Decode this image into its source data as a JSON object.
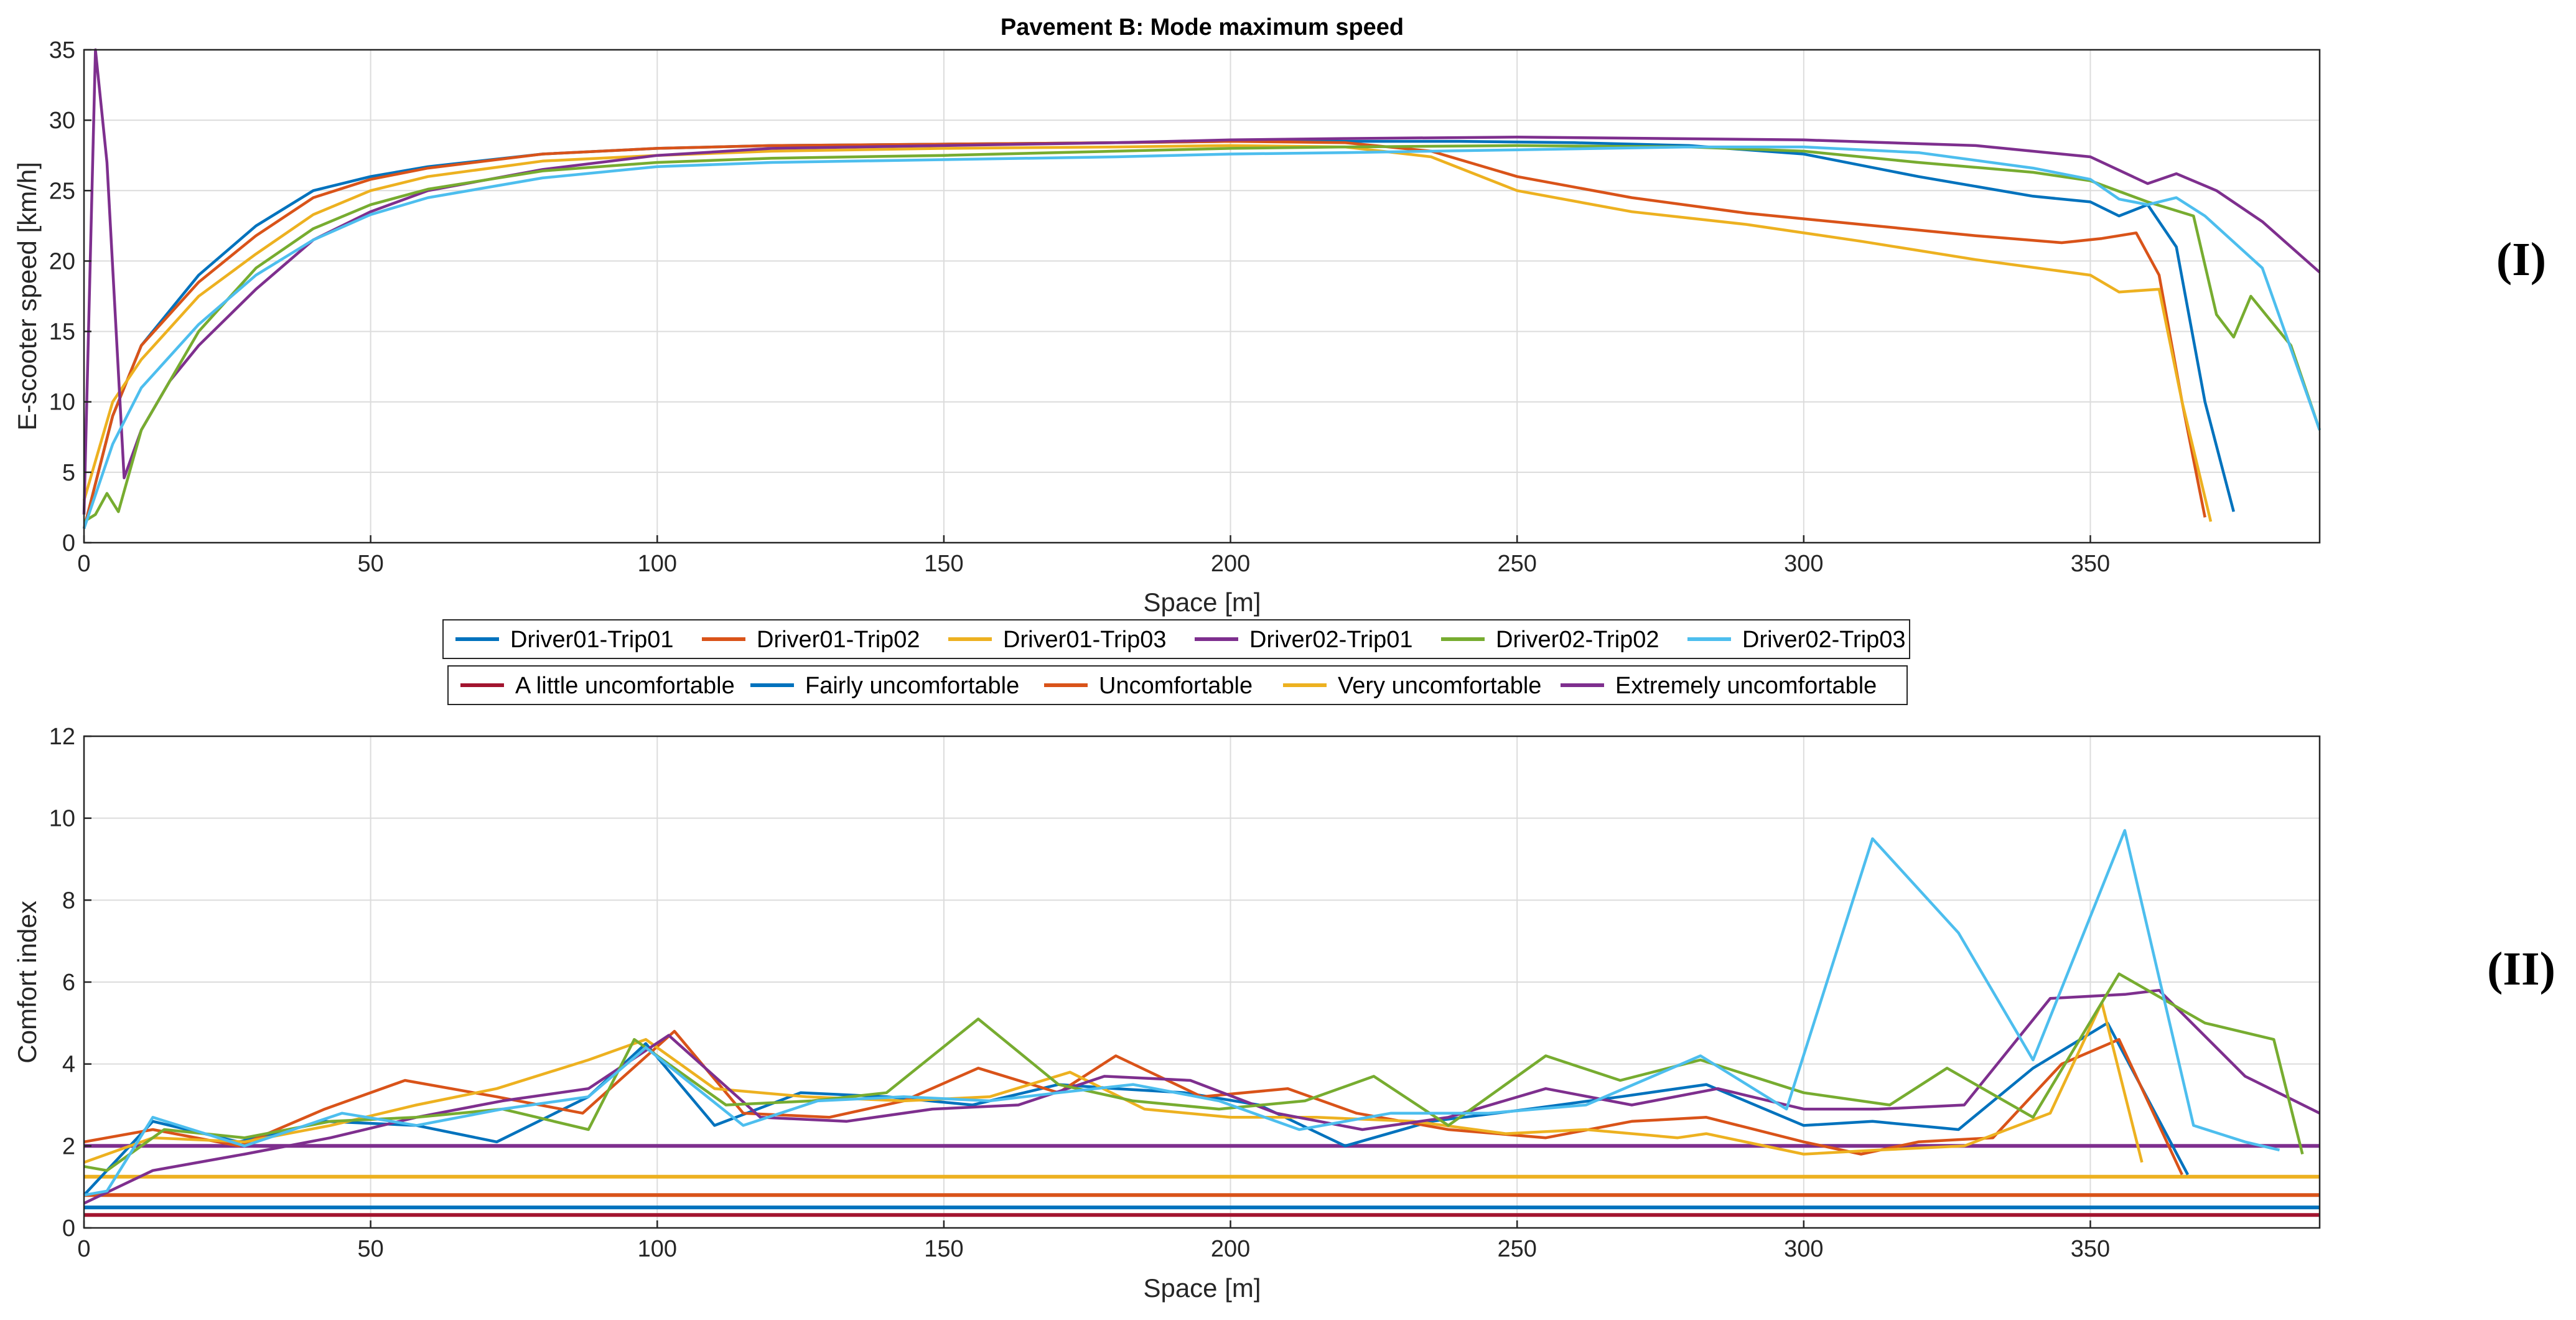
{
  "colors": {
    "trip": [
      "#0072BD",
      "#D95319",
      "#EDB120",
      "#7E2F8E",
      "#77AC30",
      "#4DBEEE"
    ],
    "threshold": [
      "#A2142F",
      "#0072BD",
      "#D95319",
      "#EDB120",
      "#7E2F8E"
    ]
  },
  "panels": [
    "(I)",
    "(II)"
  ],
  "legend_trips": [
    "Driver01-Trip01",
    "Driver01-Trip02",
    "Driver01-Trip03",
    "Driver02-Trip01",
    "Driver02-Trip02",
    "Driver02-Trip03"
  ],
  "legend_thresholds": [
    "A little uncomfortable",
    "Fairly uncomfortable",
    "Uncomfortable",
    "Very uncomfortable",
    "Extremely uncomfortable"
  ],
  "chart_data": [
    {
      "type": "line",
      "title": "Pavement B: Mode maximum speed",
      "xlabel": "Space [m]",
      "ylabel": "E-scooter speed [km/h]",
      "xlim": [
        0,
        390
      ],
      "ylim": [
        0,
        35
      ],
      "xticks": [
        0,
        50,
        100,
        150,
        200,
        250,
        300,
        350
      ],
      "yticks": [
        0,
        5,
        10,
        15,
        20,
        25,
        30,
        35
      ],
      "grid": true,
      "series": [
        {
          "name": "Driver01-Trip01",
          "x": [
            0,
            5,
            10,
            20,
            30,
            40,
            50,
            60,
            80,
            100,
            120,
            150,
            180,
            200,
            220,
            240,
            260,
            280,
            300,
            320,
            340,
            350,
            355,
            360,
            365,
            370,
            375
          ],
          "y": [
            1,
            9,
            14,
            19,
            22.5,
            25,
            26,
            26.7,
            27.6,
            28,
            28.2,
            28.3,
            28.4,
            28.5,
            28.5,
            28.5,
            28.4,
            28.2,
            27.6,
            26,
            24.6,
            24.2,
            23.2,
            24,
            21,
            10,
            2.2
          ]
        },
        {
          "name": "Driver01-Trip02",
          "x": [
            0,
            5,
            10,
            20,
            30,
            40,
            50,
            60,
            80,
            100,
            120,
            150,
            180,
            200,
            220,
            235,
            250,
            270,
            290,
            310,
            330,
            345,
            352,
            358,
            362,
            366,
            370
          ],
          "y": [
            1,
            9,
            14,
            18.5,
            21.8,
            24.5,
            25.8,
            26.6,
            27.6,
            28,
            28.2,
            28.3,
            28.4,
            28.5,
            28.4,
            27.8,
            26,
            24.5,
            23.4,
            22.6,
            21.8,
            21.3,
            21.6,
            22,
            19,
            10,
            1.8
          ]
        },
        {
          "name": "Driver01-Trip03",
          "x": [
            0,
            5,
            10,
            20,
            30,
            40,
            50,
            60,
            80,
            100,
            120,
            150,
            180,
            200,
            220,
            235,
            250,
            270,
            290,
            310,
            330,
            350,
            355,
            362,
            366,
            371
          ],
          "y": [
            3,
            10,
            13,
            17.5,
            20.5,
            23.3,
            25,
            26,
            27.1,
            27.5,
            27.8,
            28,
            28.1,
            28.2,
            28.1,
            27.4,
            25,
            23.5,
            22.6,
            21.4,
            20.1,
            19,
            17.8,
            18,
            10,
            1.5
          ]
        },
        {
          "name": "Driver02-Trip01",
          "x": [
            0,
            2,
            4,
            7,
            10,
            15,
            20,
            30,
            40,
            50,
            60,
            80,
            100,
            120,
            150,
            180,
            200,
            220,
            250,
            300,
            330,
            350,
            360,
            365,
            372,
            380,
            390
          ],
          "y": [
            2,
            35,
            27,
            4.6,
            8,
            11.5,
            14,
            18,
            21.5,
            23.5,
            25,
            26.5,
            27.5,
            28,
            28.2,
            28.4,
            28.6,
            28.7,
            28.8,
            28.6,
            28.2,
            27.4,
            25.5,
            26.2,
            25,
            22.8,
            19.2
          ]
        },
        {
          "name": "Driver02-Trip02",
          "x": [
            0,
            2,
            4,
            6,
            10,
            20,
            30,
            40,
            50,
            60,
            80,
            100,
            120,
            150,
            180,
            200,
            220,
            250,
            280,
            300,
            320,
            340,
            350,
            360,
            368,
            372,
            375,
            378,
            385,
            390
          ],
          "y": [
            1.5,
            2,
            3.5,
            2.2,
            8,
            15,
            19.5,
            22.3,
            24,
            25.1,
            26.4,
            27,
            27.3,
            27.5,
            27.8,
            28,
            28.1,
            28.2,
            28.1,
            27.8,
            27,
            26.3,
            25.7,
            24.2,
            23.2,
            16.2,
            14.6,
            17.5,
            14,
            8
          ]
        },
        {
          "name": "Driver02-Trip03",
          "x": [
            0,
            5,
            10,
            20,
            30,
            40,
            50,
            60,
            80,
            100,
            120,
            150,
            180,
            200,
            220,
            250,
            280,
            300,
            320,
            340,
            350,
            355,
            360,
            365,
            370,
            380,
            390
          ],
          "y": [
            1,
            7,
            11,
            15.5,
            19,
            21.5,
            23.3,
            24.5,
            25.9,
            26.7,
            27,
            27.2,
            27.4,
            27.6,
            27.7,
            27.9,
            28.1,
            28.1,
            27.7,
            26.6,
            25.8,
            24.4,
            24,
            24.5,
            23.2,
            19.5,
            8
          ]
        }
      ]
    },
    {
      "type": "line",
      "title": "",
      "xlabel": "Space [m]",
      "ylabel": "Comfort index",
      "xlim": [
        0,
        390
      ],
      "ylim": [
        0,
        12
      ],
      "xticks": [
        0,
        50,
        100,
        150,
        200,
        250,
        300,
        350
      ],
      "yticks": [
        0,
        2,
        4,
        6,
        8,
        10,
        12
      ],
      "grid": true,
      "series": [
        {
          "name": "Driver01-Trip01",
          "x": [
            0,
            12,
            27,
            42,
            58,
            72,
            88,
            98,
            110,
            125,
            140,
            155,
            170,
            180,
            192,
            205,
            220,
            235,
            252,
            268,
            283,
            300,
            312,
            327,
            340,
            353,
            367
          ],
          "y": [
            0.8,
            2.6,
            2.1,
            2.6,
            2.5,
            2.1,
            3.2,
            4.5,
            2.5,
            3.3,
            3.2,
            3,
            3.5,
            3.4,
            3.3,
            3,
            2,
            2.6,
            2.9,
            3.2,
            3.5,
            2.5,
            2.6,
            2.4,
            3.9,
            5,
            1.3
          ]
        },
        {
          "name": "Driver01-Trip02",
          "x": [
            0,
            12,
            27,
            42,
            56,
            72,
            87,
            103,
            115,
            130,
            143,
            156,
            170,
            180,
            195,
            210,
            222,
            238,
            255,
            270,
            283,
            300,
            310,
            320,
            333,
            345,
            355,
            366
          ],
          "y": [
            2.1,
            2.4,
            2,
            2.9,
            3.6,
            3.2,
            2.8,
            4.8,
            2.8,
            2.7,
            3.1,
            3.9,
            3.3,
            4.2,
            3.2,
            3.4,
            2.8,
            2.4,
            2.2,
            2.6,
            2.7,
            2.1,
            1.8,
            2.1,
            2.2,
            4,
            4.6,
            1.3
          ]
        },
        {
          "name": "Driver01-Trip03",
          "x": [
            0,
            12,
            28,
            43,
            58,
            72,
            88,
            98,
            110,
            126,
            143,
            158,
            172,
            185,
            200,
            215,
            232,
            248,
            262,
            278,
            283,
            300,
            313,
            328,
            343,
            352,
            359
          ],
          "y": [
            1.6,
            2.2,
            2.1,
            2.5,
            3,
            3.4,
            4.1,
            4.6,
            3.4,
            3.2,
            3.1,
            3.2,
            3.8,
            2.9,
            2.7,
            2.7,
            2.6,
            2.3,
            2.4,
            2.2,
            2.3,
            1.8,
            1.9,
            2,
            2.8,
            5.5,
            1.6
          ]
        },
        {
          "name": "Driver02-Trip01",
          "x": [
            0,
            12,
            28,
            43,
            58,
            73,
            88,
            102,
            118,
            133,
            148,
            163,
            178,
            193,
            208,
            223,
            238,
            255,
            270,
            285,
            300,
            313,
            328,
            343,
            356,
            362,
            377,
            390
          ],
          "y": [
            0.6,
            1.4,
            1.8,
            2.2,
            2.7,
            3.1,
            3.4,
            4.7,
            2.7,
            2.6,
            2.9,
            3,
            3.7,
            3.6,
            2.8,
            2.4,
            2.7,
            3.4,
            3,
            3.4,
            2.9,
            2.9,
            3,
            5.6,
            5.7,
            5.8,
            3.7,
            2.8
          ]
        },
        {
          "name": "Driver02-Trip02",
          "x": [
            0,
            4,
            14,
            28,
            43,
            58,
            73,
            88,
            96,
            112,
            127,
            140,
            156,
            170,
            183,
            198,
            213,
            225,
            238,
            255,
            268,
            282,
            300,
            315,
            325,
            340,
            355,
            370,
            382,
            387
          ],
          "y": [
            1.5,
            1.4,
            2.4,
            2.2,
            2.6,
            2.7,
            2.9,
            2.4,
            4.6,
            3,
            3.1,
            3.3,
            5.1,
            3.5,
            3.1,
            2.9,
            3.1,
            3.7,
            2.5,
            4.2,
            3.6,
            4.1,
            3.3,
            3,
            3.9,
            2.7,
            6.2,
            5,
            4.6,
            1.8
          ]
        },
        {
          "name": "Driver02-Trip03",
          "x": [
            0,
            4,
            12,
            28,
            45,
            58,
            73,
            88,
            98,
            115,
            128,
            143,
            158,
            170,
            183,
            198,
            212,
            228,
            245,
            262,
            282,
            297,
            312,
            327,
            340,
            356,
            368,
            377,
            383
          ],
          "y": [
            0.8,
            0.9,
            2.7,
            2,
            2.8,
            2.5,
            2.9,
            3.2,
            4.4,
            2.5,
            3.1,
            3.2,
            3.1,
            3.3,
            3.5,
            3.1,
            2.4,
            2.8,
            2.8,
            3,
            4.2,
            2.9,
            9.5,
            7.2,
            4.1,
            9.7,
            2.5,
            2.1,
            1.9
          ]
        },
        {
          "name": "A little uncomfortable",
          "x": [
            0,
            390
          ],
          "y": [
            0.315,
            0.315
          ]
        },
        {
          "name": "Fairly uncomfortable",
          "x": [
            0,
            390
          ],
          "y": [
            0.5,
            0.5
          ]
        },
        {
          "name": "Uncomfortable",
          "x": [
            0,
            390
          ],
          "y": [
            0.8,
            0.8
          ]
        },
        {
          "name": "Very uncomfortable",
          "x": [
            0,
            390
          ],
          "y": [
            1.25,
            1.25
          ]
        },
        {
          "name": "Extremely uncomfortable",
          "x": [
            0,
            390
          ],
          "y": [
            2,
            2
          ]
        }
      ]
    }
  ]
}
